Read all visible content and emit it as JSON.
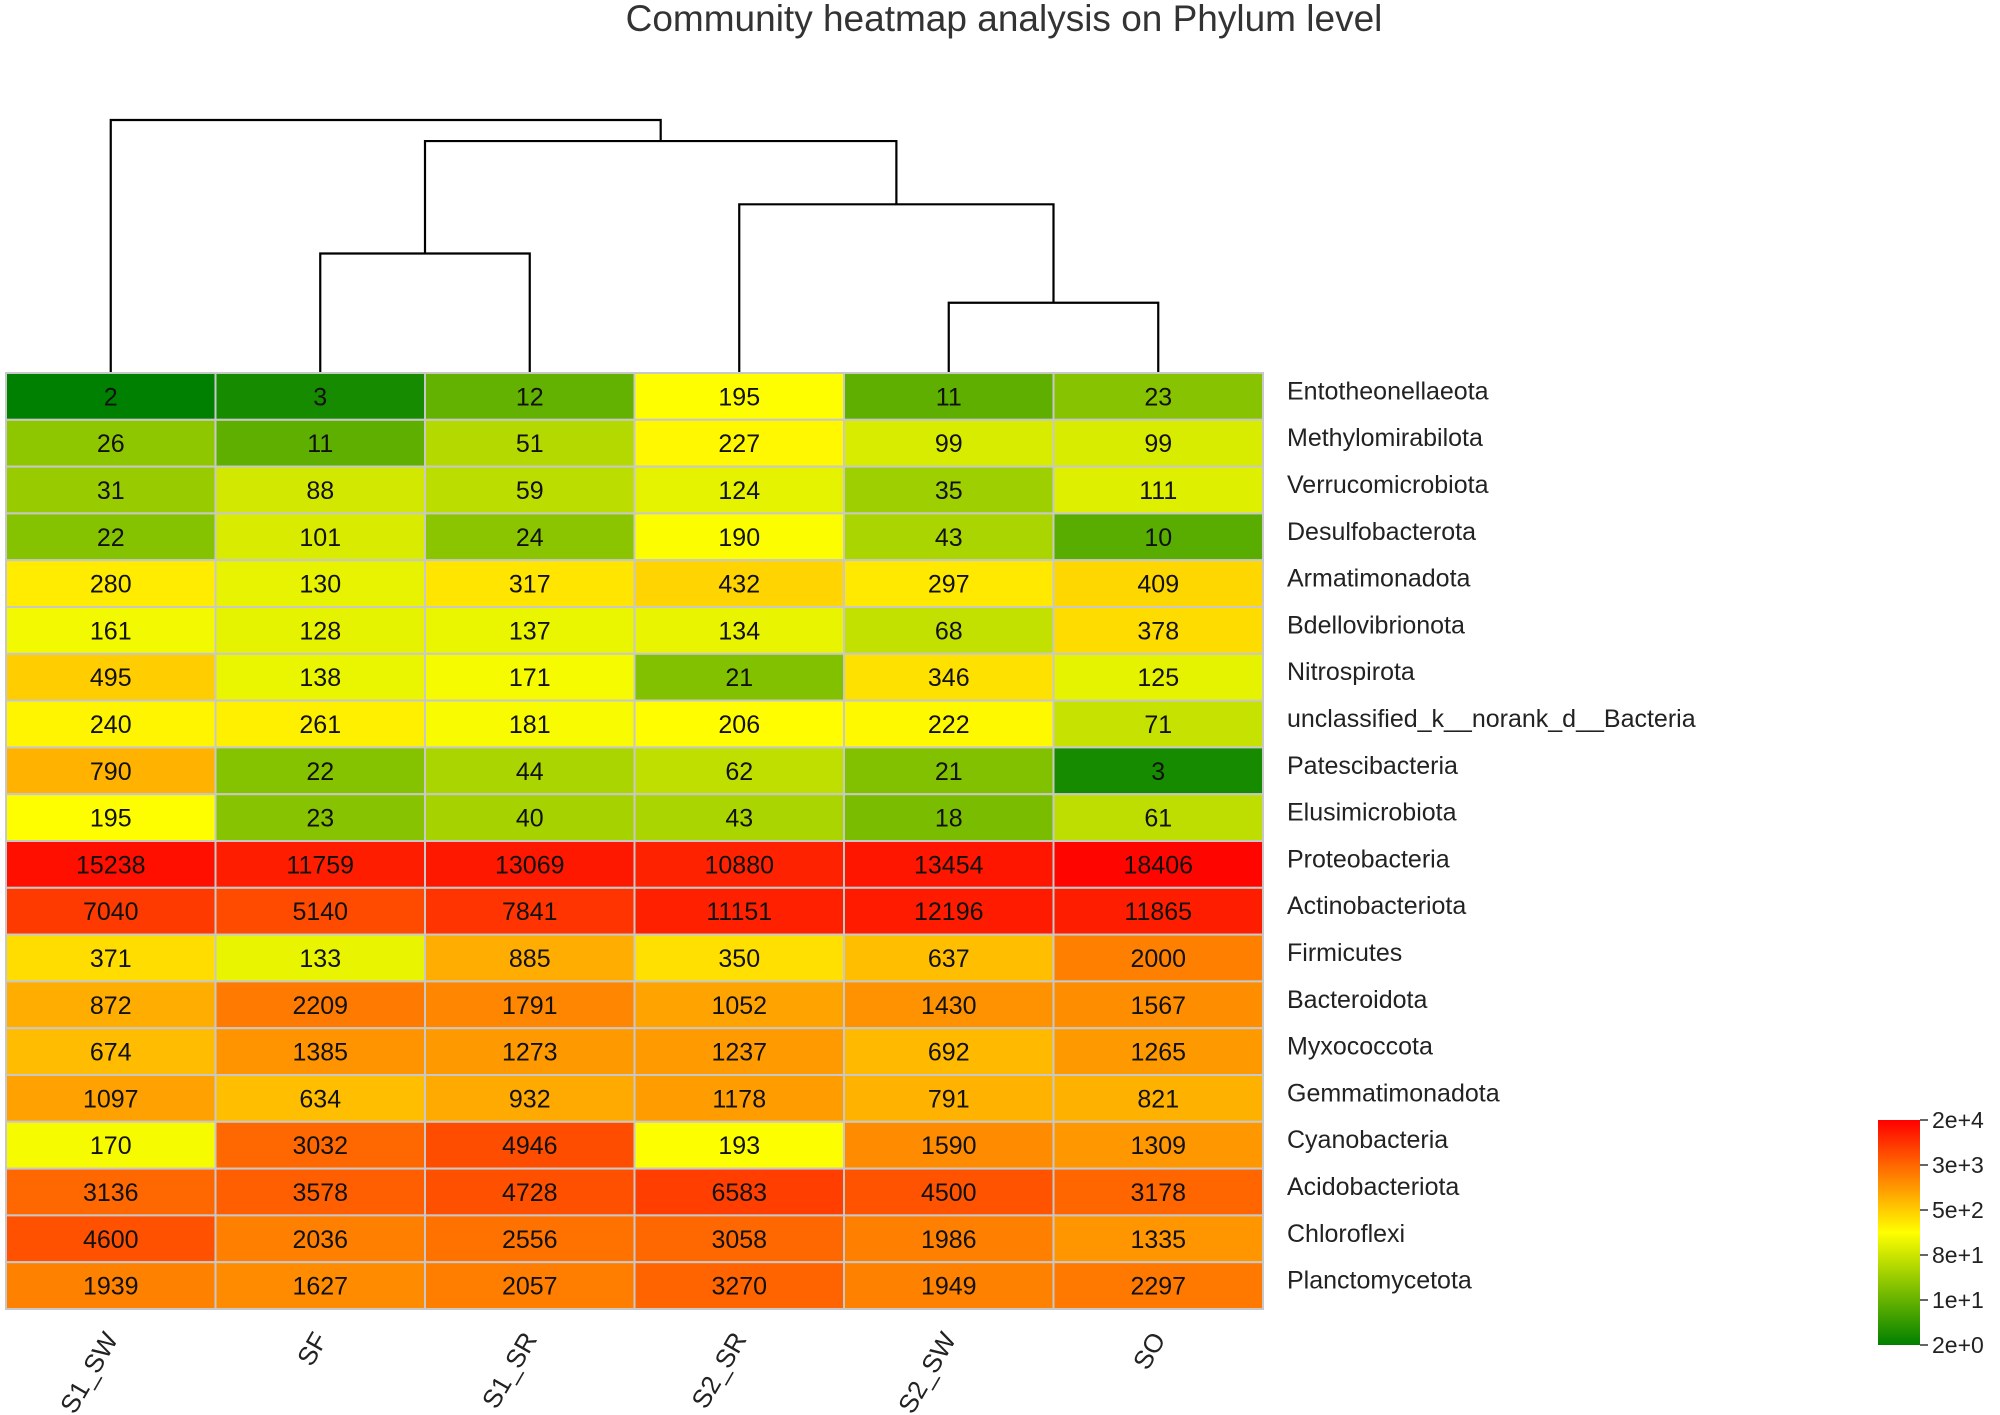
{
  "chart_data": {
    "type": "heatmap",
    "title": "Community heatmap analysis on Phylum level",
    "columns": [
      "S1_SW",
      "SF",
      "S1_SR",
      "S2_SR",
      "S2_SW",
      "SO"
    ],
    "rows": [
      "Entotheonellaeota",
      "Methylomirabilota",
      "Verrucomicrobiota",
      "Desulfobacterota",
      "Armatimonadota",
      "Bdellovibrionota",
      "Nitrospirota",
      "unclassified_k__norank_d__Bacteria",
      "Patescibacteria",
      "Elusimicrobiota",
      "Proteobacteria",
      "Actinobacteriota",
      "Firmicutes",
      "Bacteroidota",
      "Myxococcota",
      "Gemmatimonadota",
      "Cyanobacteria",
      "Acidobacteriota",
      "Chloroflexi",
      "Planctomycetota"
    ],
    "values": [
      [
        2,
        3,
        12,
        195,
        11,
        23
      ],
      [
        26,
        11,
        51,
        227,
        99,
        99
      ],
      [
        31,
        88,
        59,
        124,
        35,
        111
      ],
      [
        22,
        101,
        24,
        190,
        43,
        10
      ],
      [
        280,
        130,
        317,
        432,
        297,
        409
      ],
      [
        161,
        128,
        137,
        134,
        68,
        378
      ],
      [
        495,
        138,
        171,
        21,
        346,
        125
      ],
      [
        240,
        261,
        181,
        206,
        222,
        71
      ],
      [
        790,
        22,
        44,
        62,
        21,
        3
      ],
      [
        195,
        23,
        40,
        43,
        18,
        61
      ],
      [
        15238,
        11759,
        13069,
        10880,
        13454,
        18406
      ],
      [
        7040,
        5140,
        7841,
        11151,
        12196,
        11865
      ],
      [
        371,
        133,
        885,
        350,
        637,
        2000
      ],
      [
        872,
        2209,
        1791,
        1052,
        1430,
        1567
      ],
      [
        674,
        1385,
        1273,
        1237,
        692,
        1265
      ],
      [
        1097,
        634,
        932,
        1178,
        791,
        821
      ],
      [
        170,
        3032,
        4946,
        193,
        1590,
        1309
      ],
      [
        3136,
        3578,
        4728,
        6583,
        4500,
        3178
      ],
      [
        4600,
        2036,
        2556,
        3058,
        1986,
        1335
      ],
      [
        1939,
        1627,
        2057,
        3270,
        1949,
        2297
      ]
    ],
    "color_scale": {
      "type": "log",
      "min": 2,
      "max": 20000,
      "colors": [
        "#008000",
        "#ffff00",
        "#ff0000"
      ],
      "tick_labels": [
        "2e+4",
        "3e+3",
        "5e+2",
        "8e+1",
        "1e+1",
        "2e+0"
      ]
    },
    "dendrogram": {
      "order": [
        "S1_SW",
        "SF",
        "S1_SR",
        "S2_SR",
        "S2_SW",
        "SO"
      ],
      "merges": [
        {
          "left": "S2_SW",
          "right": "SO",
          "height": 1
        },
        {
          "left": "SF",
          "right": "S1_SR",
          "height": 1.7
        },
        {
          "left": "S2_SR",
          "node": 0,
          "height": 2.4
        },
        {
          "node_left": 1,
          "node_right": 2,
          "height": 3.3
        },
        {
          "left": "S1_SW",
          "node": 3,
          "height": 3.6
        }
      ]
    },
    "colors": {
      "cell_border": "#c8c8c8",
      "dendrogram_line": "#000000"
    }
  }
}
